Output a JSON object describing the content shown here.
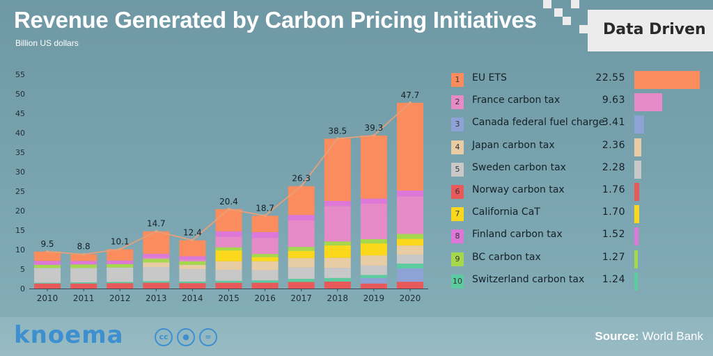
{
  "header": {
    "title": "Revenue Generated by Carbon Pricing Initiatives",
    "subtitle": "Billion US dollars",
    "brand": "Data Driven"
  },
  "footer": {
    "logo": "knoema",
    "source_label": "Source:",
    "source_value": "World Bank",
    "license_icons": [
      "creative-commons-icon",
      "attribution-icon",
      "no-derivatives-icon"
    ]
  },
  "chart_data": [
    {
      "type": "bar",
      "stacked": true,
      "ylabel": "Billion US dollars",
      "ylim": [
        0,
        55
      ],
      "yticks": [
        0,
        5,
        10,
        15,
        20,
        25,
        30,
        35,
        40,
        45,
        50,
        55
      ],
      "grid": false,
      "categories": [
        "2010",
        "2011",
        "2012",
        "2013",
        "2014",
        "2015",
        "2016",
        "2017",
        "2018",
        "2019",
        "2020"
      ],
      "totals": [
        9.5,
        8.8,
        10.1,
        14.7,
        12.4,
        20.4,
        18.7,
        26.3,
        38.5,
        39.3,
        47.7
      ],
      "total_line_color": "#e8a078",
      "series": [
        {
          "key": "norway",
          "color": "#e85a5a",
          "values": [
            1.3,
            1.3,
            1.4,
            1.5,
            1.4,
            1.5,
            1.5,
            1.7,
            1.8,
            1.3,
            1.76
          ]
        },
        {
          "key": "canada",
          "color": "#8fa2d6",
          "values": [
            0,
            0,
            0,
            0,
            0,
            0,
            0,
            0,
            0,
            1.4,
            3.41
          ]
        },
        {
          "key": "switzerland",
          "color": "#5ccca0",
          "values": [
            0.2,
            0.3,
            0.3,
            0.4,
            0.4,
            0.5,
            0.6,
            0.8,
            0.9,
            0.8,
            1.24
          ]
        },
        {
          "key": "sweden",
          "color": "#c8c8c8",
          "values": [
            3.8,
            3.7,
            3.7,
            3.6,
            3.2,
            2.8,
            2.6,
            2.9,
            2.6,
            2.4,
            2.28
          ]
        },
        {
          "key": "japan",
          "color": "#e8cca4",
          "values": [
            0,
            0,
            0,
            1.2,
            1.1,
            2.2,
            2.3,
            2.4,
            2.6,
            2.6,
            2.36
          ]
        },
        {
          "key": "california",
          "color": "#fcd81c",
          "values": [
            0,
            0,
            0,
            0,
            0,
            2.8,
            1.1,
            1.9,
            3.2,
            3.1,
            1.7
          ]
        },
        {
          "key": "bc",
          "color": "#a6d84e",
          "values": [
            0.8,
            0.9,
            0.9,
            0.9,
            0.9,
            0.8,
            0.8,
            1.0,
            1.0,
            1.1,
            1.27
          ]
        },
        {
          "key": "france",
          "color": "#e68ac8",
          "values": [
            0,
            0,
            0,
            0.4,
            0.4,
            2.7,
            4.1,
            6.8,
            9.1,
            9.1,
            9.63
          ]
        },
        {
          "key": "finland",
          "color": "#de78d8",
          "values": [
            1.0,
            0.9,
            0.9,
            0.9,
            0.9,
            1.4,
            1.5,
            1.4,
            1.3,
            1.3,
            1.52
          ]
        },
        {
          "key": "euets",
          "color": "#fa8c5e",
          "values": [
            2.4,
            1.7,
            2.9,
            5.8,
            4.1,
            5.7,
            4.2,
            7.4,
            16.0,
            16.2,
            22.55
          ]
        }
      ]
    },
    {
      "type": "bar",
      "orientation": "horizontal",
      "year": "2020",
      "categories": [
        "EU ETS",
        "France carbon tax",
        "Canada federal fuel charge",
        "Japan carbon tax",
        "Sweden carbon tax",
        "Norway carbon tax",
        "California CaT",
        "Finland carbon tax",
        "BC carbon tax",
        "Switzerland carbon tax"
      ],
      "ranks": [
        "1",
        "2",
        "3",
        "4",
        "5",
        "6",
        "7",
        "8",
        "9",
        "10"
      ],
      "values": [
        22.55,
        9.63,
        3.41,
        2.36,
        2.28,
        1.76,
        1.7,
        1.52,
        1.27,
        1.24
      ],
      "value_labels": [
        "22.55",
        "9.63",
        "3.41",
        "2.36",
        "2.28",
        "1.76",
        "1.70",
        "1.52",
        "1.27",
        "1.24"
      ],
      "colors": [
        "#fa8c5e",
        "#e68ac8",
        "#8fa2d6",
        "#e8cca4",
        "#c8c8c8",
        "#e85a5a",
        "#fcd81c",
        "#de78d8",
        "#a6d84e",
        "#5ccca0"
      ]
    }
  ]
}
